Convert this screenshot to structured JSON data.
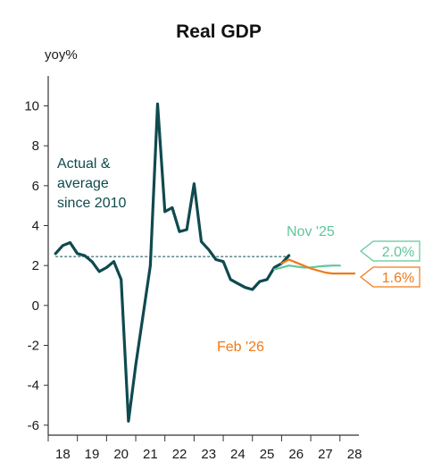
{
  "chart_data": {
    "type": "line",
    "title": "Real GDP",
    "ylabel": "yoy%",
    "ylim": [
      -6.5,
      11.5
    ],
    "xlim": [
      2017.75,
      2028.4
    ],
    "y_ticks": [
      10,
      8,
      6,
      4,
      2,
      0,
      -2,
      -4,
      -6
    ],
    "x_ticks": [
      {
        "label": "18",
        "year": 2018
      },
      {
        "label": "19",
        "year": 2019
      },
      {
        "label": "20",
        "year": 2020
      },
      {
        "label": "21",
        "year": 2021
      },
      {
        "label": "22",
        "year": 2022
      },
      {
        "label": "23",
        "year": 2023
      },
      {
        "label": "24",
        "year": 2024
      },
      {
        "label": "25",
        "year": 2025
      },
      {
        "label": "26",
        "year": 2026
      },
      {
        "label": "27",
        "year": 2027
      },
      {
        "label": "28",
        "year": 2028
      }
    ],
    "average_since_2010": 2.45,
    "annotations": {
      "actual": [
        "Actual &",
        "average",
        "since 2010"
      ],
      "nov": "Nov '25",
      "feb": "Feb '26"
    },
    "series": [
      {
        "name": "Actual & average since 2010",
        "color": "#0f4a4f",
        "points": [
          [
            2018.0,
            2.6
          ],
          [
            2018.25,
            3.0
          ],
          [
            2018.5,
            3.15
          ],
          [
            2018.75,
            2.6
          ],
          [
            2019.0,
            2.5
          ],
          [
            2019.25,
            2.2
          ],
          [
            2019.5,
            1.7
          ],
          [
            2019.75,
            1.9
          ],
          [
            2020.0,
            2.2
          ],
          [
            2020.25,
            1.3
          ],
          [
            2020.5,
            -5.8
          ],
          [
            2020.75,
            -3.0
          ],
          [
            2021.0,
            -0.5
          ],
          [
            2021.25,
            2.0
          ],
          [
            2021.5,
            10.1
          ],
          [
            2021.75,
            4.7
          ],
          [
            2022.0,
            4.9
          ],
          [
            2022.25,
            3.7
          ],
          [
            2022.5,
            3.8
          ],
          [
            2022.75,
            6.1
          ],
          [
            2023.0,
            3.2
          ],
          [
            2023.25,
            2.8
          ],
          [
            2023.5,
            2.3
          ],
          [
            2023.75,
            2.2
          ],
          [
            2024.0,
            1.3
          ],
          [
            2024.25,
            1.1
          ],
          [
            2024.5,
            0.9
          ],
          [
            2024.75,
            0.8
          ],
          [
            2025.0,
            1.2
          ],
          [
            2025.25,
            1.3
          ],
          [
            2025.5,
            1.9
          ],
          [
            2025.75,
            2.1
          ],
          [
            2026.0,
            2.5
          ]
        ]
      },
      {
        "name": "Nov '25",
        "color": "#5ec79a",
        "points": [
          [
            2025.5,
            1.8
          ],
          [
            2025.75,
            1.9
          ],
          [
            2026.0,
            2.0
          ],
          [
            2026.25,
            1.95
          ],
          [
            2026.5,
            1.9
          ],
          [
            2026.75,
            1.9
          ],
          [
            2027.0,
            1.95
          ],
          [
            2027.25,
            1.98
          ],
          [
            2027.5,
            2.0
          ],
          [
            2027.75,
            2.0
          ]
        ],
        "end_label": "2.0%"
      },
      {
        "name": "Feb '26",
        "color": "#f07a17",
        "points": [
          [
            2025.75,
            2.1
          ],
          [
            2026.0,
            2.3
          ],
          [
            2026.25,
            2.15
          ],
          [
            2026.5,
            2.0
          ],
          [
            2026.75,
            1.85
          ],
          [
            2027.0,
            1.75
          ],
          [
            2027.25,
            1.65
          ],
          [
            2027.5,
            1.6
          ],
          [
            2027.75,
            1.6
          ],
          [
            2028.0,
            1.6
          ],
          [
            2028.25,
            1.6
          ]
        ],
        "end_label": "1.6%"
      }
    ]
  }
}
